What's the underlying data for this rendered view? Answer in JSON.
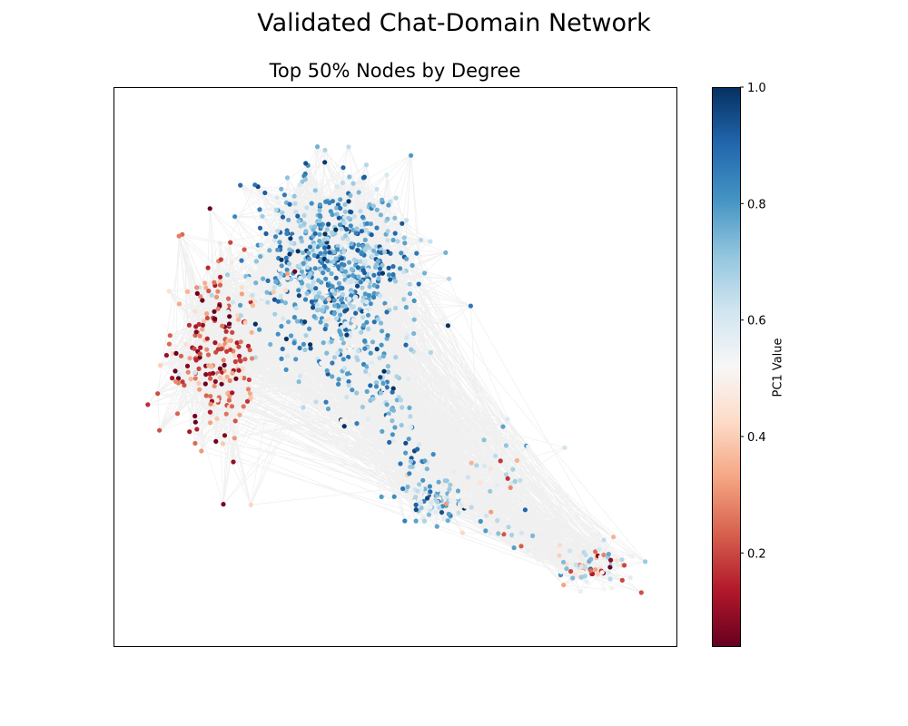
{
  "figure": {
    "suptitle": "Validated Chat-Domain Network",
    "axes_title": "Top 50% Nodes by Degree"
  },
  "chart_data": {
    "type": "scatter",
    "subtype": "network-graph",
    "title": "Top 50% Nodes by Degree",
    "xlabel": "",
    "ylabel": "",
    "axes_ticks_visible": false,
    "grid": false,
    "colormap": "RdBu",
    "colormap_stops": [
      "#67001f",
      "#b2182b",
      "#d6604d",
      "#f4a582",
      "#fddbc7",
      "#f7f7f7",
      "#d1e5f0",
      "#92c5de",
      "#4393c3",
      "#2166ac",
      "#053061"
    ],
    "edge_color": "#000000",
    "colorbar": {
      "label": "PC1 Value",
      "range": [
        0.04,
        1.0
      ],
      "ticks": [
        0.2,
        0.4,
        0.6,
        0.8,
        1.0
      ],
      "tick_labels": [
        "0.2",
        "0.4",
        "0.6",
        "0.8",
        "1.0"
      ]
    },
    "clusters": [
      {
        "cx": 0.39,
        "cy": 0.31,
        "sx": 0.07,
        "sy": 0.075,
        "n": 620,
        "pc1": 0.77,
        "pc1_sd": 0.12
      },
      {
        "cx": 0.42,
        "cy": 0.46,
        "sx": 0.045,
        "sy": 0.06,
        "n": 140,
        "pc1": 0.72,
        "pc1_sd": 0.12
      },
      {
        "cx": 0.18,
        "cy": 0.47,
        "sx": 0.035,
        "sy": 0.085,
        "n": 230,
        "pc1": 0.24,
        "pc1_sd": 0.16
      },
      {
        "cx": 0.57,
        "cy": 0.74,
        "sx": 0.03,
        "sy": 0.02,
        "n": 95,
        "pc1": 0.66,
        "pc1_sd": 0.16
      },
      {
        "cx": 0.85,
        "cy": 0.86,
        "sx": 0.03,
        "sy": 0.02,
        "n": 75,
        "pc1": 0.45,
        "pc1_sd": 0.22
      },
      {
        "cx": 0.68,
        "cy": 0.69,
        "sx": 0.05,
        "sy": 0.05,
        "n": 30,
        "pc1": 0.55,
        "pc1_sd": 0.2
      },
      {
        "cx": 0.5,
        "cy": 0.55,
        "sx": 0.04,
        "sy": 0.06,
        "n": 40,
        "pc1": 0.7,
        "pc1_sd": 0.15
      }
    ],
    "bridges": [
      {
        "from": [
          0.47,
          0.5
        ],
        "to": [
          0.56,
          0.72
        ],
        "n": 45,
        "pc1": 0.72
      },
      {
        "from": [
          0.56,
          0.74
        ],
        "to": [
          0.84,
          0.86
        ],
        "n": 30,
        "pc1": 0.6
      },
      {
        "from": [
          0.22,
          0.4
        ],
        "to": [
          0.33,
          0.33
        ],
        "n": 30,
        "pc1": 0.5
      }
    ],
    "seed": 42
  }
}
